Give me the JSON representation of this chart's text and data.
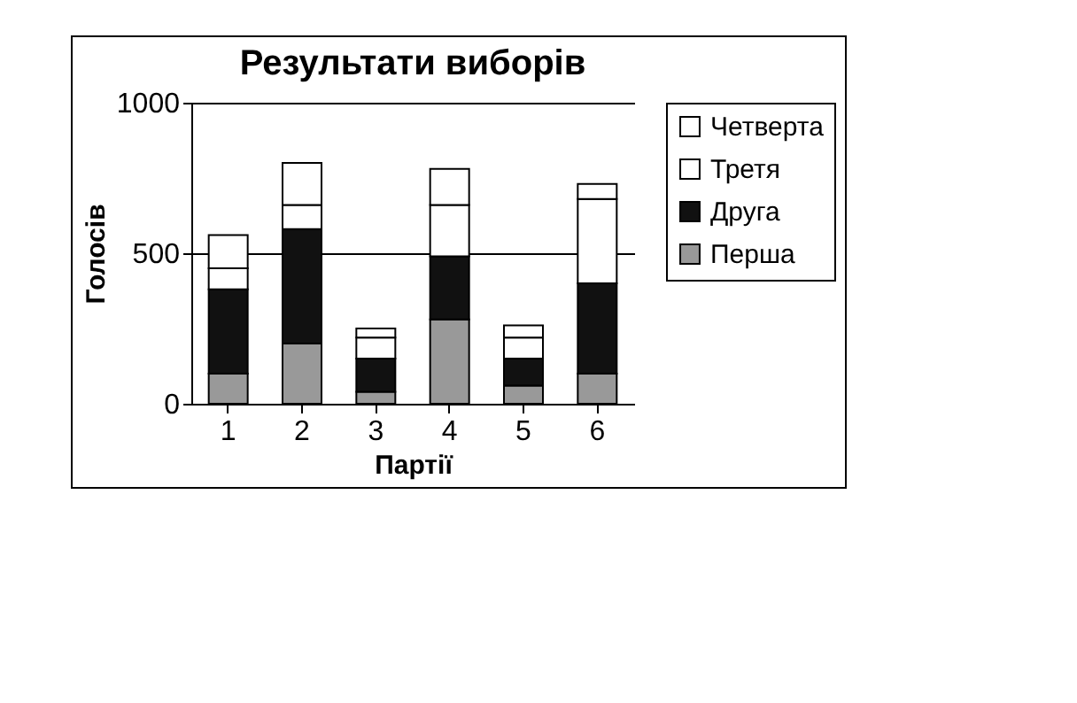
{
  "chart_data": {
    "type": "bar",
    "title": "Результати виборів",
    "xlabel": "Партії",
    "ylabel": "Голосів",
    "categories": [
      "1",
      "2",
      "3",
      "4",
      "5",
      "6"
    ],
    "stacked": true,
    "series": [
      {
        "name": "Перша",
        "color": "#999999",
        "values": [
          100,
          200,
          40,
          280,
          60,
          100
        ]
      },
      {
        "name": "Друга",
        "color": "#111111",
        "values": [
          280,
          380,
          110,
          210,
          90,
          300
        ]
      },
      {
        "name": "Третя",
        "color": "#ffffff",
        "values": [
          70,
          80,
          70,
          170,
          70,
          280
        ]
      },
      {
        "name": "Четверта",
        "color": "#ffffff",
        "values": [
          110,
          140,
          30,
          120,
          40,
          50
        ]
      }
    ],
    "ylim": [
      0,
      1000
    ],
    "yticks": [
      0,
      500,
      1000
    ],
    "grid": "y",
    "legend": "right"
  }
}
